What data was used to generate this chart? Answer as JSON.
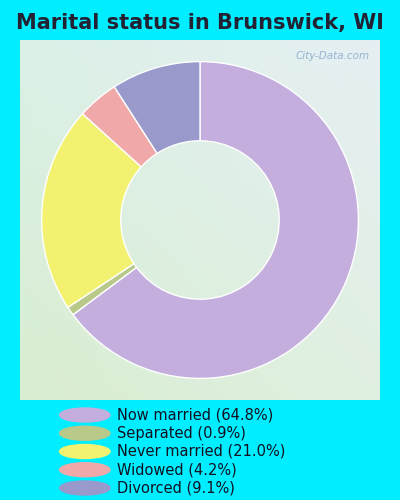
{
  "title": "Marital status in Brunswick, WI",
  "slices": [
    {
      "label": "Now married (64.8%)",
      "value": 64.8,
      "color": "#c4aedd"
    },
    {
      "label": "Separated (0.9%)",
      "value": 0.9,
      "color": "#b8c98a"
    },
    {
      "label": "Never married (21.0%)",
      "value": 21.0,
      "color": "#f2f270"
    },
    {
      "label": "Widowed (4.2%)",
      "value": 4.2,
      "color": "#f0a8a8"
    },
    {
      "label": "Divorced (9.1%)",
      "value": 9.1,
      "color": "#9999cc"
    }
  ],
  "outer_bg": "#00eeff",
  "chart_bg_tl": "#daf0e8",
  "chart_bg_tr": "#e8f0f8",
  "chart_bg_bl": "#d8edcc",
  "chart_bg_br": "#e0f0e0",
  "watermark": "City-Data.com",
  "title_fontsize": 15,
  "title_color": "#222233",
  "legend_fontsize": 10.5,
  "start_angle": 90,
  "donut_width": 0.55
}
